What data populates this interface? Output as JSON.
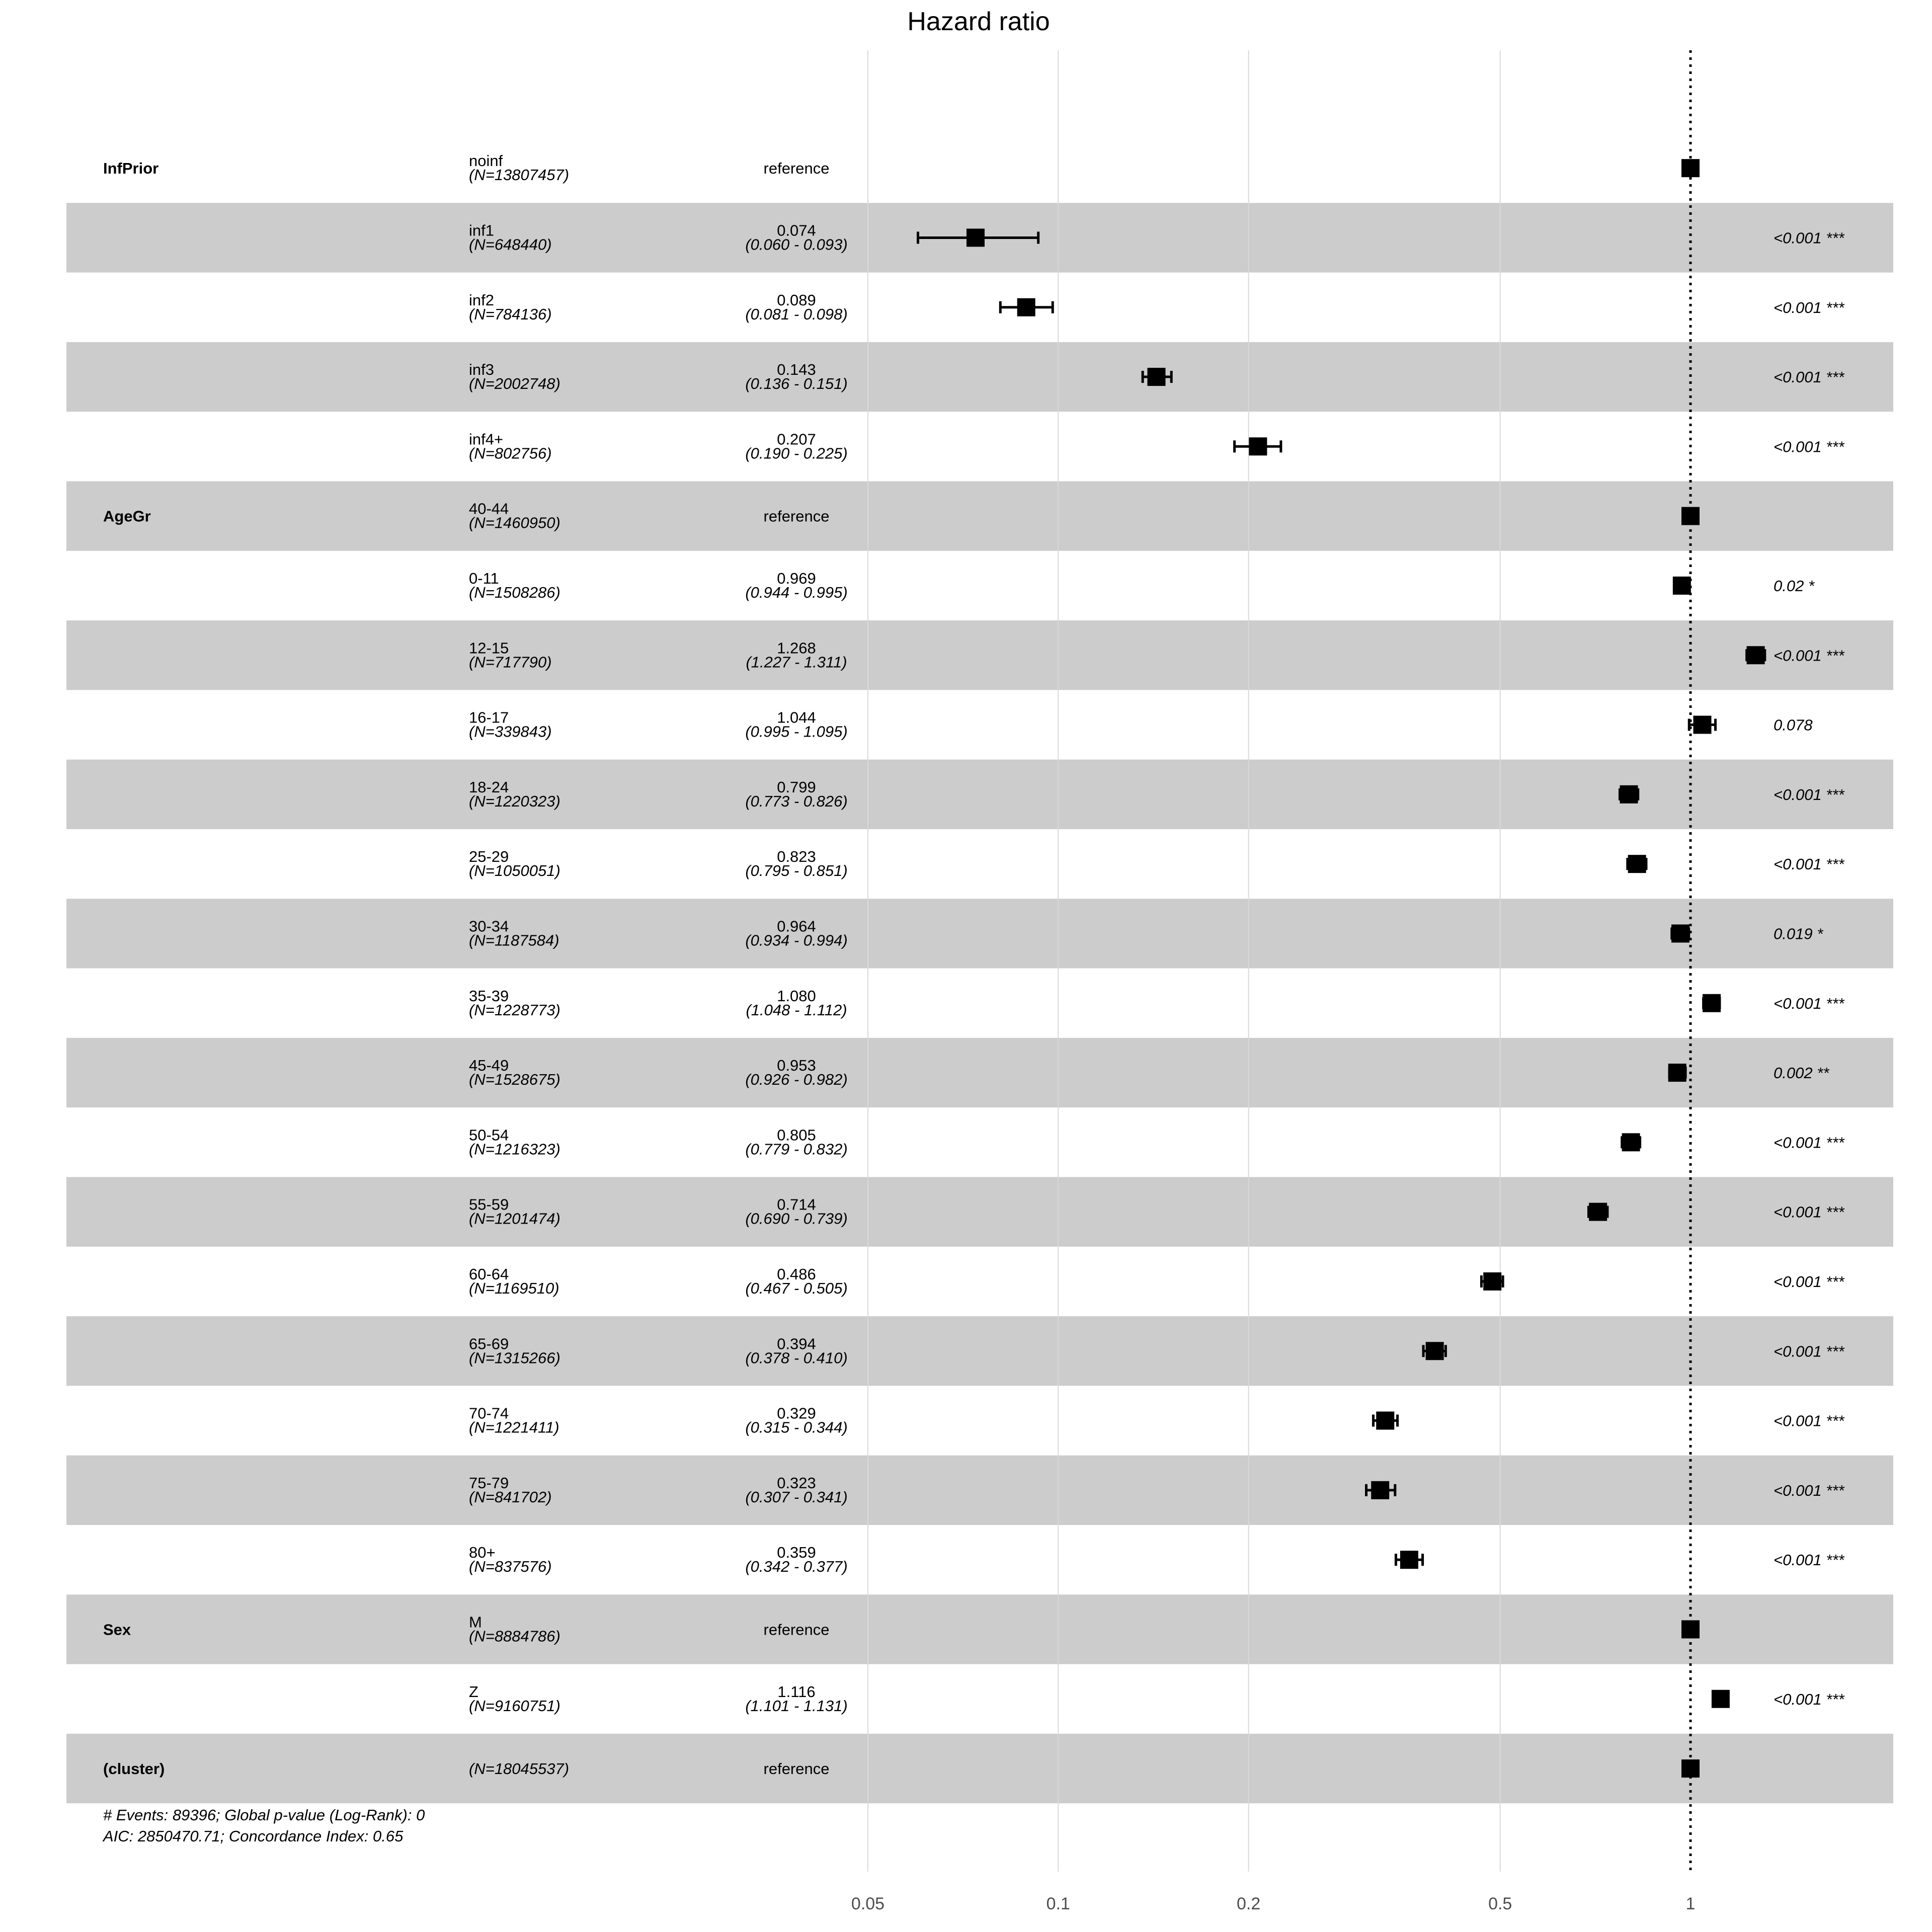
{
  "chart_data": {
    "type": "forest",
    "title": "Hazard ratio",
    "xscale": "log",
    "xlim": [
      0.05,
      2.7
    ],
    "xticks": [
      "0.05",
      "0.1",
      "0.2",
      "0.5",
      "1"
    ],
    "reference_line": 1,
    "rows": [
      {
        "var": "InfPrior",
        "level": "noinf",
        "n": "(N=13807457)",
        "estimate": "reference",
        "ci": "",
        "p": "",
        "hr": 1,
        "lo": 1,
        "hi": 1,
        "shaded": false
      },
      {
        "var": "",
        "level": "inf1",
        "n": "(N=648440)",
        "estimate": "0.074",
        "ci": "(0.060 - 0.093)",
        "p": "<0.001 ***",
        "hr": 0.074,
        "lo": 0.06,
        "hi": 0.093,
        "shaded": true
      },
      {
        "var": "",
        "level": "inf2",
        "n": "(N=784136)",
        "estimate": "0.089",
        "ci": "(0.081 - 0.098)",
        "p": "<0.001 ***",
        "hr": 0.089,
        "lo": 0.081,
        "hi": 0.098,
        "shaded": false
      },
      {
        "var": "",
        "level": "inf3",
        "n": "(N=2002748)",
        "estimate": "0.143",
        "ci": "(0.136 - 0.151)",
        "p": "<0.001 ***",
        "hr": 0.143,
        "lo": 0.136,
        "hi": 0.151,
        "shaded": true
      },
      {
        "var": "",
        "level": "inf4+",
        "n": "(N=802756)",
        "estimate": "0.207",
        "ci": "(0.190 - 0.225)",
        "p": "<0.001 ***",
        "hr": 0.207,
        "lo": 0.19,
        "hi": 0.225,
        "shaded": false
      },
      {
        "var": "AgeGr",
        "level": "40-44",
        "n": "(N=1460950)",
        "estimate": "reference",
        "ci": "",
        "p": "",
        "hr": 1,
        "lo": 1,
        "hi": 1,
        "shaded": true
      },
      {
        "var": "",
        "level": "0-11",
        "n": "(N=1508286)",
        "estimate": "0.969",
        "ci": "(0.944 - 0.995)",
        "p": "0.02 *",
        "hr": 0.969,
        "lo": 0.944,
        "hi": 0.995,
        "shaded": false
      },
      {
        "var": "",
        "level": "12-15",
        "n": "(N=717790)",
        "estimate": "1.268",
        "ci": "(1.227 - 1.311)",
        "p": "<0.001 ***",
        "hr": 1.268,
        "lo": 1.227,
        "hi": 1.311,
        "shaded": true
      },
      {
        "var": "",
        "level": "16-17",
        "n": "(N=339843)",
        "estimate": "1.044",
        "ci": "(0.995 - 1.095)",
        "p": "0.078",
        "hr": 1.044,
        "lo": 0.995,
        "hi": 1.095,
        "shaded": false
      },
      {
        "var": "",
        "level": "18-24",
        "n": "(N=1220323)",
        "estimate": "0.799",
        "ci": "(0.773 - 0.826)",
        "p": "<0.001 ***",
        "hr": 0.799,
        "lo": 0.773,
        "hi": 0.826,
        "shaded": true
      },
      {
        "var": "",
        "level": "25-29",
        "n": "(N=1050051)",
        "estimate": "0.823",
        "ci": "(0.795 - 0.851)",
        "p": "<0.001 ***",
        "hr": 0.823,
        "lo": 0.795,
        "hi": 0.851,
        "shaded": false
      },
      {
        "var": "",
        "level": "30-34",
        "n": "(N=1187584)",
        "estimate": "0.964",
        "ci": "(0.934 - 0.994)",
        "p": "0.019 *",
        "hr": 0.964,
        "lo": 0.934,
        "hi": 0.994,
        "shaded": true
      },
      {
        "var": "",
        "level": "35-39",
        "n": "(N=1228773)",
        "estimate": "1.080",
        "ci": "(1.048 - 1.112)",
        "p": "<0.001 ***",
        "hr": 1.08,
        "lo": 1.048,
        "hi": 1.112,
        "shaded": false
      },
      {
        "var": "",
        "level": "45-49",
        "n": "(N=1528675)",
        "estimate": "0.953",
        "ci": "(0.926 - 0.982)",
        "p": "0.002 **",
        "hr": 0.953,
        "lo": 0.926,
        "hi": 0.982,
        "shaded": true
      },
      {
        "var": "",
        "level": "50-54",
        "n": "(N=1216323)",
        "estimate": "0.805",
        "ci": "(0.779 - 0.832)",
        "p": "<0.001 ***",
        "hr": 0.805,
        "lo": 0.779,
        "hi": 0.832,
        "shaded": false
      },
      {
        "var": "",
        "level": "55-59",
        "n": "(N=1201474)",
        "estimate": "0.714",
        "ci": "(0.690 - 0.739)",
        "p": "<0.001 ***",
        "hr": 0.714,
        "lo": 0.69,
        "hi": 0.739,
        "shaded": true
      },
      {
        "var": "",
        "level": "60-64",
        "n": "(N=1169510)",
        "estimate": "0.486",
        "ci": "(0.467 - 0.505)",
        "p": "<0.001 ***",
        "hr": 0.486,
        "lo": 0.467,
        "hi": 0.505,
        "shaded": false
      },
      {
        "var": "",
        "level": "65-69",
        "n": "(N=1315266)",
        "estimate": "0.394",
        "ci": "(0.378 - 0.410)",
        "p": "<0.001 ***",
        "hr": 0.394,
        "lo": 0.378,
        "hi": 0.41,
        "shaded": true
      },
      {
        "var": "",
        "level": "70-74",
        "n": "(N=1221411)",
        "estimate": "0.329",
        "ci": "(0.315 - 0.344)",
        "p": "<0.001 ***",
        "hr": 0.329,
        "lo": 0.315,
        "hi": 0.344,
        "shaded": false
      },
      {
        "var": "",
        "level": "75-79",
        "n": "(N=841702)",
        "estimate": "0.323",
        "ci": "(0.307 - 0.341)",
        "p": "<0.001 ***",
        "hr": 0.323,
        "lo": 0.307,
        "hi": 0.341,
        "shaded": true
      },
      {
        "var": "",
        "level": "80+",
        "n": "(N=837576)",
        "estimate": "0.359",
        "ci": "(0.342 - 0.377)",
        "p": "<0.001 ***",
        "hr": 0.359,
        "lo": 0.342,
        "hi": 0.377,
        "shaded": false
      },
      {
        "var": "Sex",
        "level": "M",
        "n": "(N=8884786)",
        "estimate": "reference",
        "ci": "",
        "p": "",
        "hr": 1,
        "lo": 1,
        "hi": 1,
        "shaded": true
      },
      {
        "var": "",
        "level": "Z",
        "n": "(N=9160751)",
        "estimate": "1.116",
        "ci": "(1.101 - 1.131)",
        "p": "<0.001 ***",
        "hr": 1.116,
        "lo": 1.101,
        "hi": 1.131,
        "shaded": false
      },
      {
        "var": "(cluster)",
        "level": "",
        "n": "(N=18045537)",
        "estimate": "reference",
        "ci": "",
        "p": "",
        "hr": 1,
        "lo": 1,
        "hi": 1,
        "shaded": true
      }
    ],
    "footnotes": [
      "# Events: 89396; Global p-value (Log-Rank): 0",
      "AIC: 2850470.71; Concordance Index: 0.65"
    ],
    "colors": {
      "band": "#cccccc",
      "grid": "#d9d9d9",
      "point": "#000000"
    }
  }
}
